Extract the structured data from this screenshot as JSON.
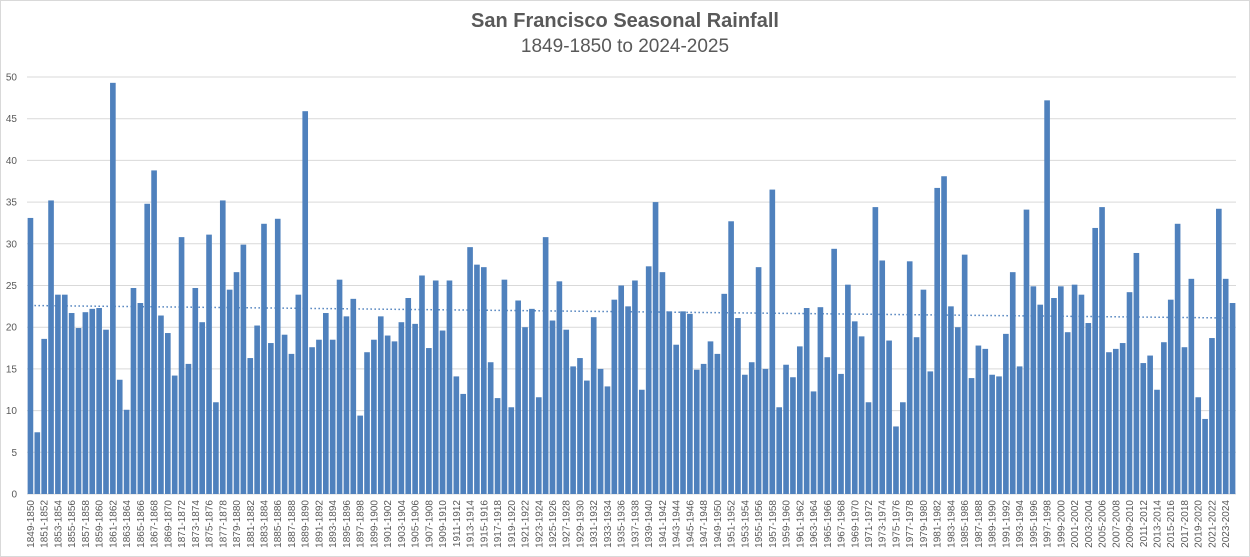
{
  "chart_data": {
    "type": "bar",
    "title": "San Francisco Seasonal Rainfall",
    "subtitle": "1849-1850 to 2024-2025",
    "xlabel": "",
    "ylabel": "",
    "ylim": [
      0,
      50
    ],
    "yticks": [
      0,
      5,
      10,
      15,
      20,
      25,
      30,
      35,
      40,
      45,
      50
    ],
    "grid": true,
    "legend": "none",
    "bar_color": "#4f81bd",
    "trendline": {
      "type": "linear",
      "style": "dotted",
      "color": "#4f81bd",
      "start": 22.6,
      "end": 21.1
    },
    "start_year": 1849,
    "label_every": 2,
    "values": [
      33.1,
      7.4,
      18.6,
      35.2,
      23.9,
      23.9,
      21.7,
      19.9,
      21.8,
      22.2,
      22.3,
      19.7,
      49.3,
      13.7,
      10.1,
      24.7,
      22.9,
      34.8,
      38.8,
      21.4,
      19.3,
      14.2,
      30.8,
      15.6,
      24.7,
      20.6,
      31.1,
      11.0,
      35.2,
      24.5,
      26.6,
      29.9,
      16.3,
      20.2,
      32.4,
      18.1,
      33.0,
      19.1,
      16.8,
      23.9,
      45.9,
      17.6,
      18.5,
      21.7,
      18.5,
      25.7,
      21.3,
      23.4,
      9.4,
      17.0,
      18.5,
      21.3,
      19.0,
      18.3,
      20.6,
      23.5,
      20.4,
      26.2,
      17.5,
      25.6,
      19.6,
      25.6,
      14.1,
      12.0,
      29.6,
      27.5,
      27.2,
      15.8,
      11.5,
      25.7,
      10.4,
      23.2,
      20.0,
      22.2,
      11.6,
      30.8,
      20.8,
      25.5,
      19.7,
      15.3,
      16.3,
      13.6,
      21.2,
      15.0,
      12.9,
      23.3,
      25.0,
      22.5,
      25.6,
      12.5,
      27.3,
      35.0,
      26.6,
      21.9,
      17.9,
      21.9,
      21.6,
      14.9,
      15.6,
      18.3,
      16.8,
      24.0,
      32.7,
      21.1,
      14.3,
      15.8,
      27.2,
      15.0,
      36.5,
      10.4,
      15.5,
      14.0,
      17.7,
      22.3,
      12.3,
      22.4,
      16.4,
      29.4,
      14.4,
      25.1,
      20.7,
      18.9,
      11.0,
      34.4,
      28.0,
      18.4,
      8.1,
      11.0,
      27.9,
      18.8,
      24.5,
      14.7,
      36.7,
      38.1,
      22.5,
      20.0,
      28.7,
      13.9,
      17.8,
      17.4,
      14.3,
      14.1,
      19.2,
      26.6,
      15.3,
      34.1,
      24.9,
      22.7,
      47.2,
      23.5,
      24.9,
      19.4,
      25.1,
      23.9,
      20.5,
      31.9,
      34.4,
      17.0,
      17.4,
      18.1,
      24.2,
      28.9,
      15.7,
      16.6,
      12.5,
      18.2,
      23.3,
      32.4,
      17.6,
      25.8,
      11.6,
      9.0,
      18.7,
      34.2,
      25.8,
      22.9
    ]
  }
}
